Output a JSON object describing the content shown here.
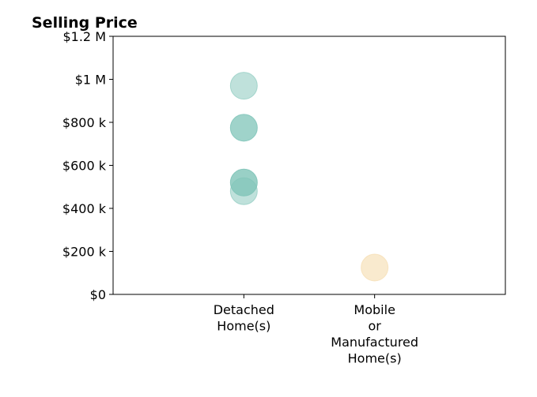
{
  "chart_data": {
    "type": "scatter",
    "title": "Selling Price",
    "xlabel": "",
    "ylabel": "",
    "categories": [
      [
        "Detached",
        "Home(s)"
      ],
      [
        "Mobile",
        "or",
        "Manufactured",
        "Home(s)"
      ]
    ],
    "xlim": [
      -1,
      2
    ],
    "ylim": [
      0,
      1200000
    ],
    "yticks": [
      {
        "value": 0,
        "label": "$0"
      },
      {
        "value": 200000,
        "label": "$200 k"
      },
      {
        "value": 400000,
        "label": "$400 k"
      },
      {
        "value": 600000,
        "label": "$600 k"
      },
      {
        "value": 800000,
        "label": "$800 k"
      },
      {
        "value": 1000000,
        "label": "$1 M"
      },
      {
        "value": 1200000,
        "label": "$1.2 M"
      }
    ],
    "grid": false,
    "legend": "none",
    "colors": {
      "Detached Home(s)": "#7fc4b8",
      "Mobile or Manufactured Home(s)": "#f5dcae"
    },
    "points": [
      {
        "category": 0,
        "y": 970000,
        "opacity": 0.5
      },
      {
        "category": 0,
        "y": 775000,
        "opacity": 0.75
      },
      {
        "category": 0,
        "y": 520000,
        "opacity": 0.8
      },
      {
        "category": 0,
        "y": 480000,
        "opacity": 0.5
      },
      {
        "category": 1,
        "y": 125000,
        "opacity": 0.6
      }
    ]
  }
}
